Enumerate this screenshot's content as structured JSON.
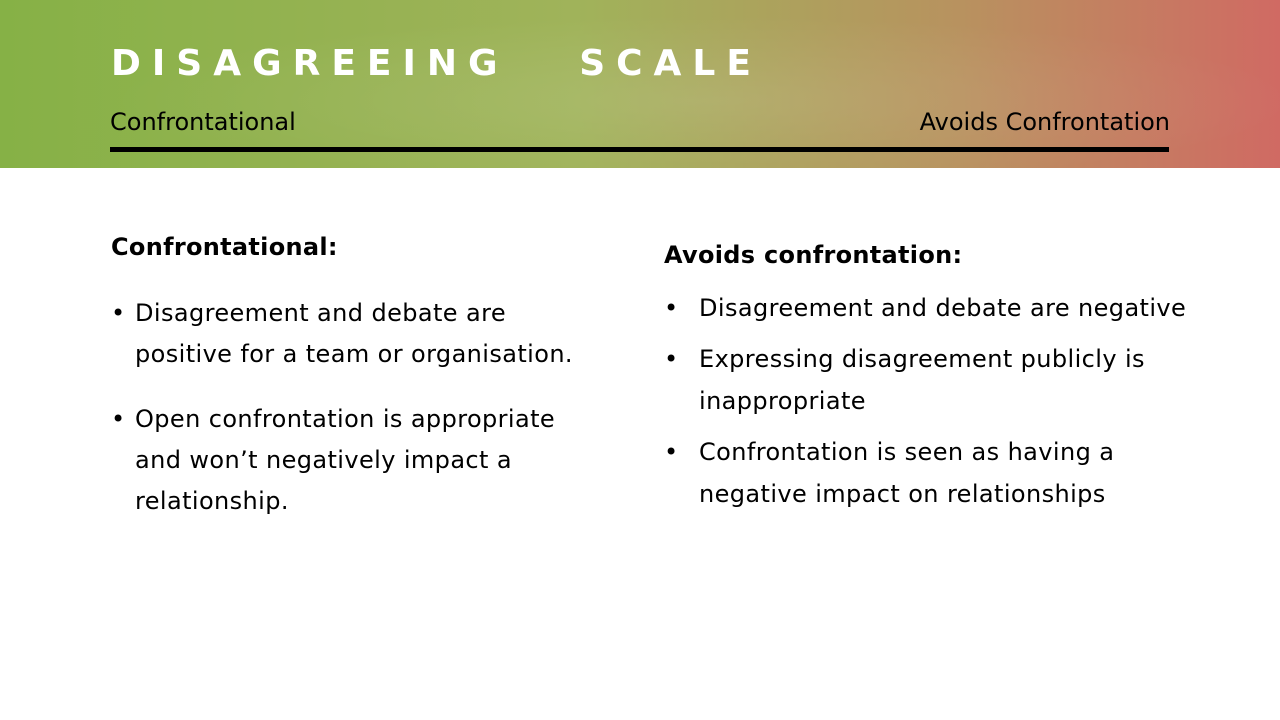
{
  "slide": {
    "title": "DISAGREEING   SCALE",
    "scale": {
      "left_label": "Confrontational",
      "right_label": "Avoids Confrontation"
    },
    "left_column": {
      "heading": "Confrontational:",
      "bullets": [
        "Disagreement and debate are positive for a team or organisation.",
        "Open confrontation is appropriate and won’t negatively impact a relationship."
      ]
    },
    "right_column": {
      "heading": "Avoids confrontation:",
      "bullets": [
        "Disagreement and debate are negative",
        "Expressing disagreement publicly is inappropriate",
        "Confrontation is seen as having a negative impact on relationships"
      ]
    },
    "bullet_symbol": "•"
  },
  "colors": {
    "banner_gradient_start": "#86b146",
    "banner_gradient_mid": "#a0b35a",
    "banner_gradient_end": "#d06a63",
    "title_text": "#ffffff",
    "body_text": "#000000"
  }
}
